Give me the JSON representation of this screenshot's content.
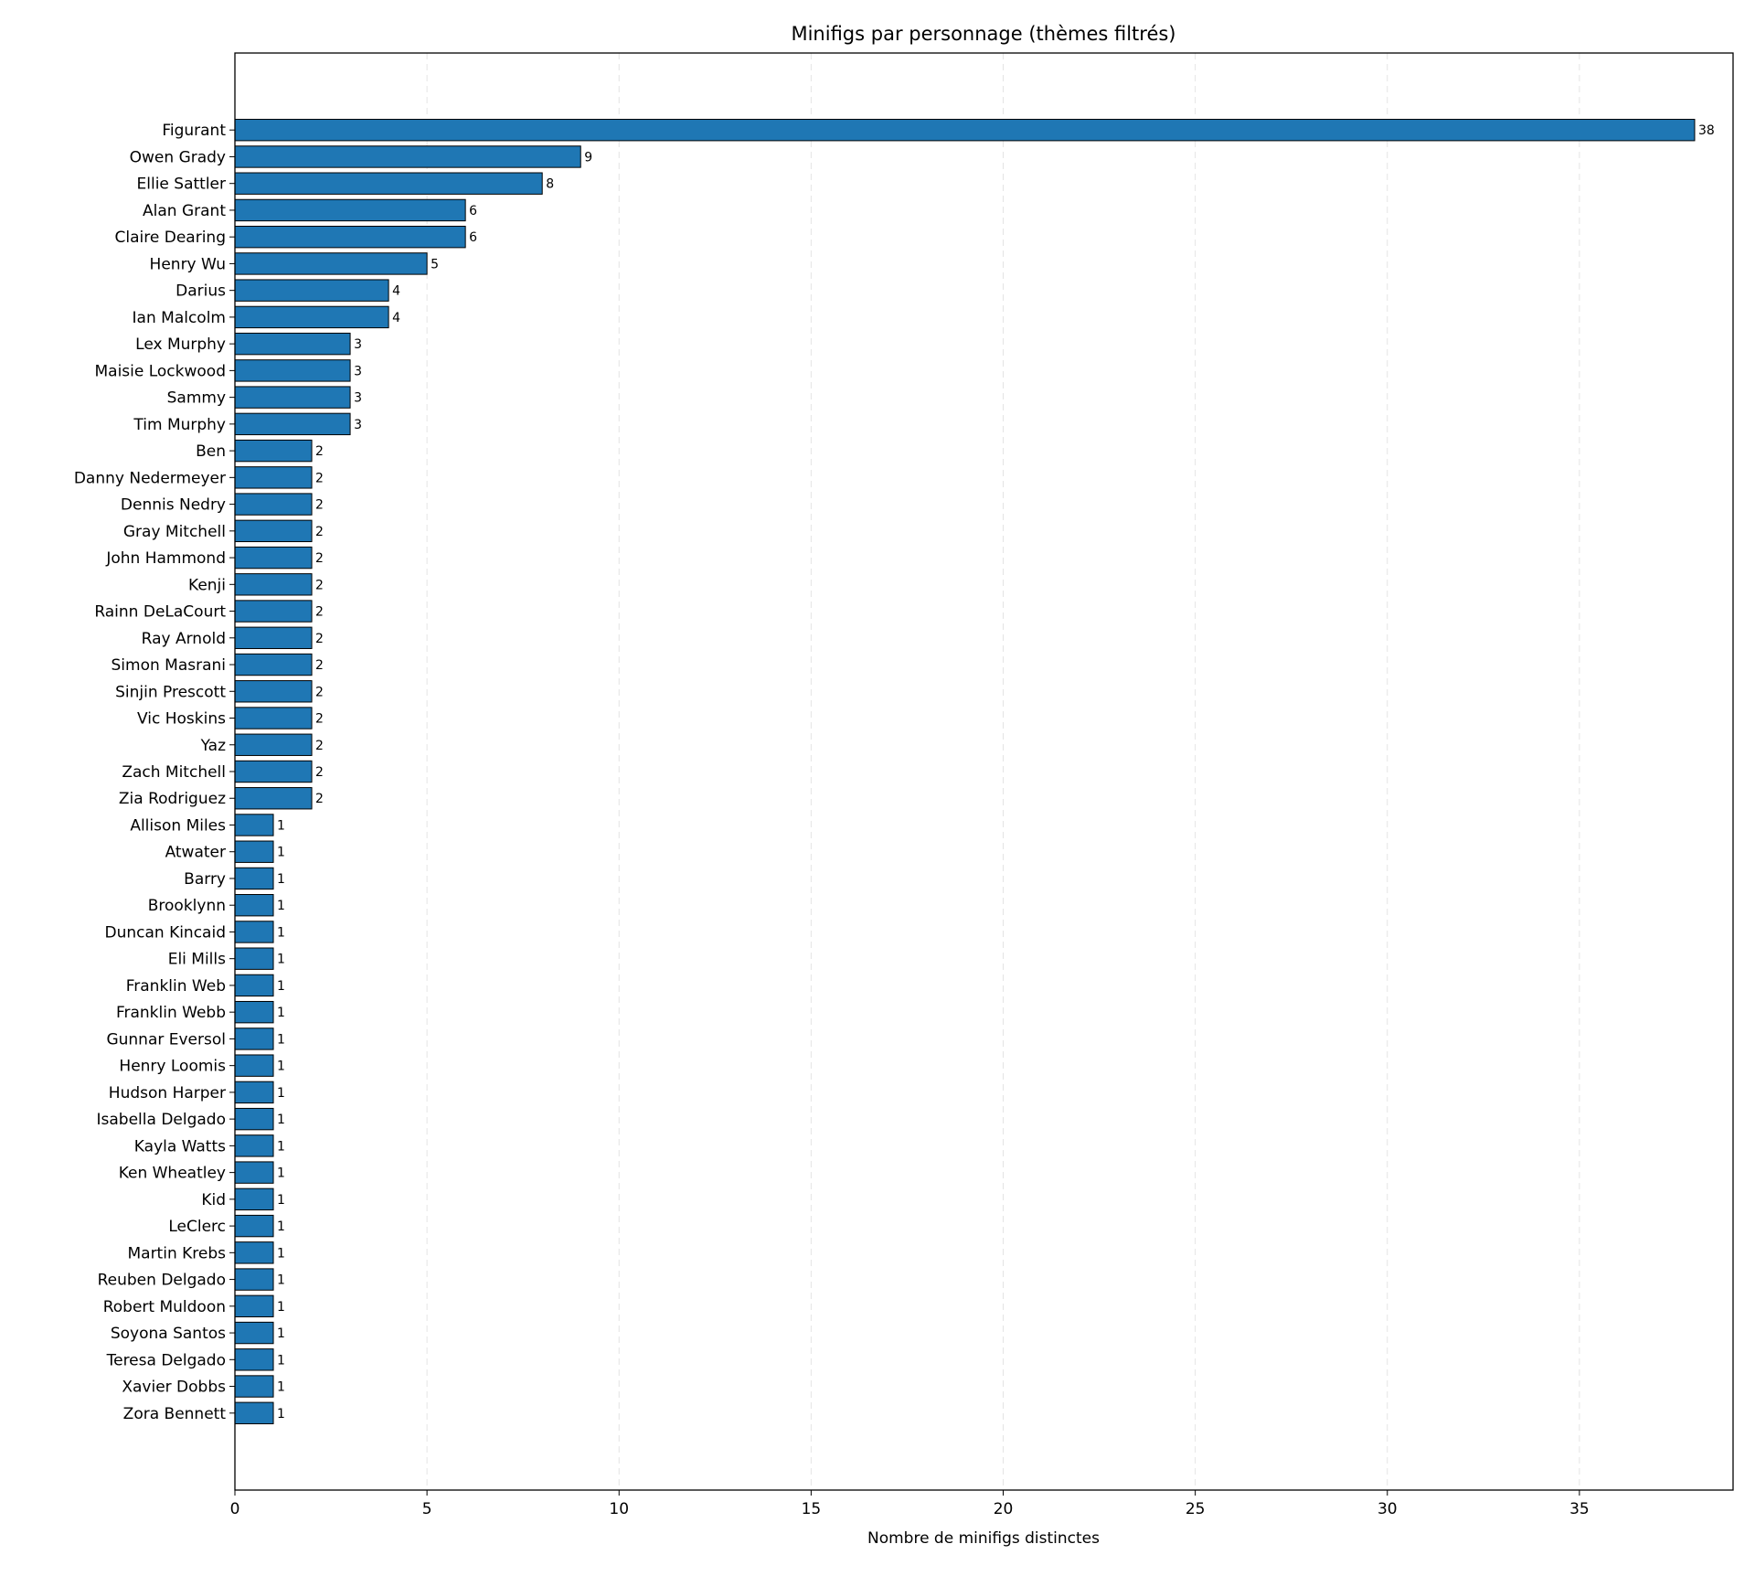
{
  "chart_data": {
    "type": "bar",
    "orientation": "horizontal",
    "title": "Minifigs par personnage (thèmes filtrés)",
    "xlabel": "Nombre de minifigs distinctes",
    "ylabel": "",
    "xlim": [
      0,
      39
    ],
    "xticks": [
      0,
      5,
      10,
      15,
      20,
      25,
      30,
      35
    ],
    "grid": "x dashed",
    "bar_color": "#1f77b4",
    "edge_color": "#000000",
    "categories": [
      "Figurant",
      "Owen Grady",
      "Ellie Sattler",
      "Alan Grant",
      "Claire Dearing",
      "Henry Wu",
      "Darius",
      "Ian Malcolm",
      "Lex Murphy",
      "Maisie Lockwood",
      "Sammy",
      "Tim Murphy",
      "Ben",
      "Danny Nedermeyer",
      "Dennis Nedry",
      "Gray Mitchell",
      "John Hammond",
      "Kenji",
      "Rainn DeLaCourt",
      "Ray Arnold",
      "Simon Masrani",
      "Sinjin Prescott",
      "Vic Hoskins",
      "Yaz",
      "Zach Mitchell",
      "Zia Rodriguez",
      "Allison Miles",
      "Atwater",
      "Barry",
      "Brooklynn",
      "Duncan Kincaid",
      "Eli Mills",
      "Franklin Web",
      "Franklin Webb",
      "Gunnar Eversol",
      "Henry Loomis",
      "Hudson Harper",
      "Isabella Delgado",
      "Kayla Watts",
      "Ken Wheatley",
      "Kid",
      "LeClerc",
      "Martin Krebs",
      "Reuben Delgado",
      "Robert Muldoon",
      "Soyona Santos",
      "Teresa Delgado",
      "Xavier Dobbs",
      "Zora Bennett"
    ],
    "values": [
      38,
      9,
      8,
      6,
      6,
      5,
      4,
      4,
      3,
      3,
      3,
      3,
      2,
      2,
      2,
      2,
      2,
      2,
      2,
      2,
      2,
      2,
      2,
      2,
      2,
      2,
      1,
      1,
      1,
      1,
      1,
      1,
      1,
      1,
      1,
      1,
      1,
      1,
      1,
      1,
      1,
      1,
      1,
      1,
      1,
      1,
      1,
      1,
      1
    ]
  }
}
